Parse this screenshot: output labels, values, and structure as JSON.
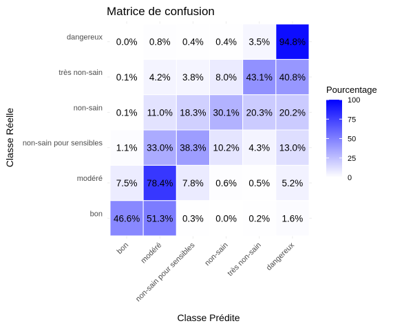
{
  "chart_data": {
    "type": "heatmap",
    "title": "Matrice de confusion",
    "xlabel": "Classe Prédite",
    "ylabel": "Classe Réelle",
    "x_categories": [
      "bon",
      "modéré",
      "non-sain pour sensibles",
      "non-sain",
      "très non-sain",
      "dangereux"
    ],
    "y_categories": [
      "bon",
      "modéré",
      "non-sain pour sensibles",
      "non-sain",
      "très non-sain",
      "dangereux"
    ],
    "values": [
      [
        46.6,
        51.3,
        0.3,
        0.0,
        0.2,
        1.6
      ],
      [
        7.5,
        78.4,
        7.8,
        0.6,
        0.5,
        5.2
      ],
      [
        1.1,
        33.0,
        38.3,
        10.2,
        4.3,
        13.0
      ],
      [
        0.1,
        11.0,
        18.3,
        30.1,
        20.3,
        20.2
      ],
      [
        0.1,
        4.2,
        3.8,
        8.0,
        43.1,
        40.8
      ],
      [
        0.0,
        0.8,
        0.4,
        0.4,
        3.5,
        94.8
      ]
    ],
    "value_suffix": "%",
    "color_low": "#ffffff",
    "color_high": "#0000ff",
    "range": [
      0,
      100
    ],
    "legend": {
      "title": "Pourcentage",
      "ticks": [
        0,
        25,
        50,
        75,
        100
      ],
      "position": "right"
    }
  }
}
